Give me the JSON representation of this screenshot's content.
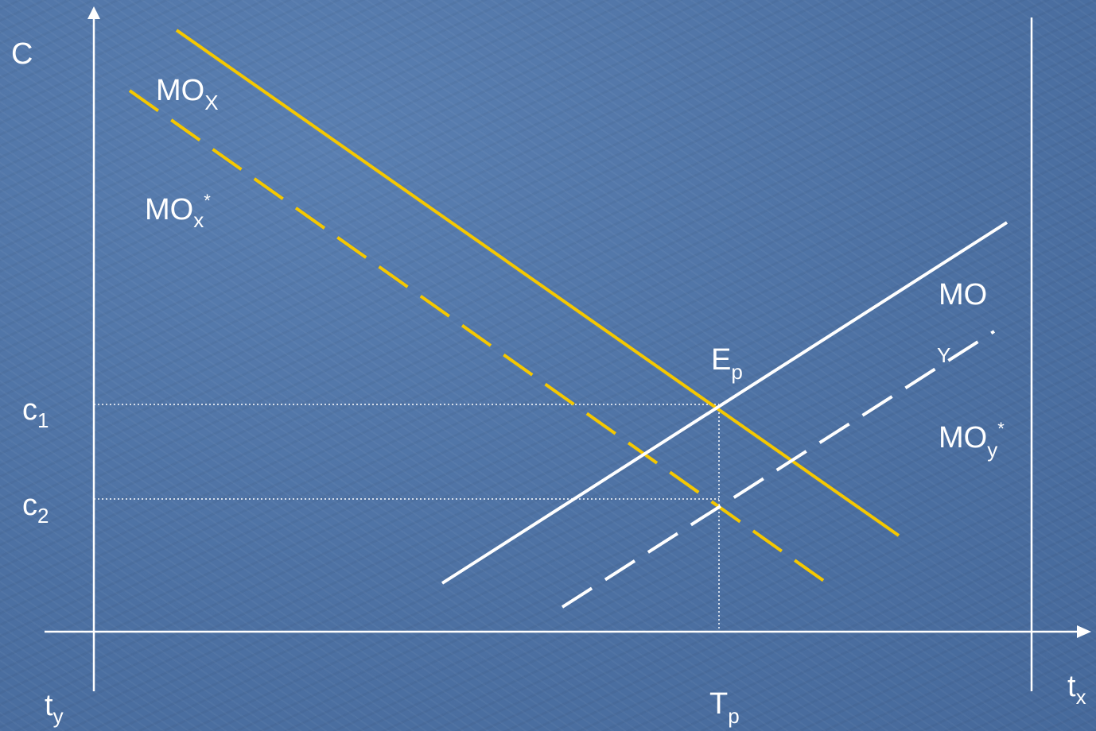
{
  "colors": {
    "background": "#4f74a6",
    "axis": "#ffffff",
    "supply": "#ffffff",
    "demand": "#f5c800"
  },
  "labels": {
    "y_axis": "C",
    "t_left_base": "t",
    "t_left_sub": "y",
    "t_right_base": "t",
    "t_right_sub": "x",
    "c1_base": "c",
    "c1_sub": "1",
    "c2_base": "c",
    "c2_sub": "2",
    "tp_base": "T",
    "tp_sub": "p",
    "ep_base": "E",
    "ep_sub": "p",
    "mox_base": "MO",
    "mox_sub": "X",
    "moxs_base": "MO",
    "moxs_sub": "x",
    "moxs_sup": "*",
    "moy_base": "MO",
    "moy_sub": "Y",
    "moys_base": "MO",
    "moys_sub": "y",
    "moys_sup": "*"
  }
}
